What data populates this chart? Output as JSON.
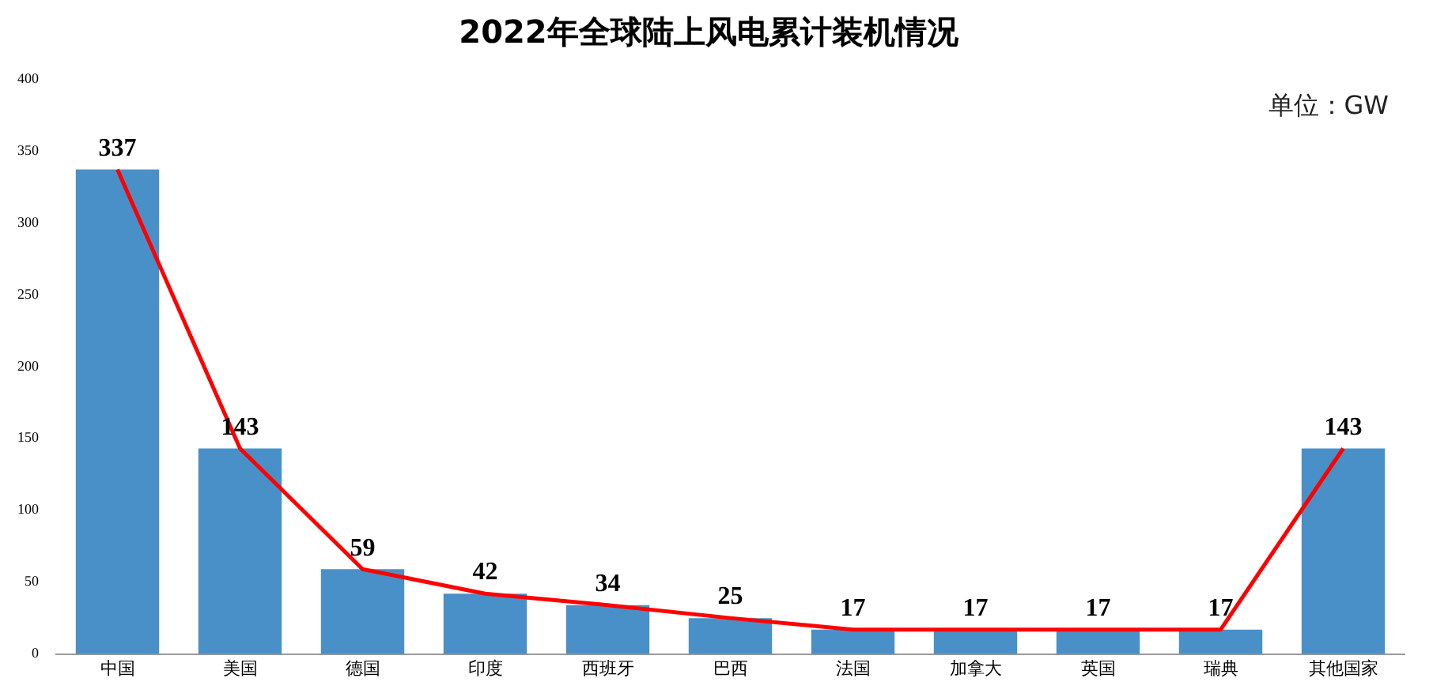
{
  "chart_data": {
    "type": "bar",
    "title": "2022年全球陆上风电累计装机情况",
    "annotations": [
      "单位：GW"
    ],
    "categories": [
      "中国",
      "美国",
      "德国",
      "印度",
      "西班牙",
      "巴西",
      "法国",
      "加拿大",
      "英国",
      "瑞典",
      "其他国家"
    ],
    "series": [
      {
        "color": "#4a90c8",
        "values": [
          337,
          143,
          59,
          42,
          34,
          25,
          17,
          17,
          17,
          17,
          143
        ],
        "value_labels": [
          "337",
          "143",
          "59",
          "42",
          "34",
          "25",
          "17",
          "17",
          "17",
          "17",
          "143"
        ]
      },
      {
        "type": "line",
        "color": "#ff0000",
        "values": [
          337,
          143,
          59,
          42,
          34,
          25,
          17,
          17,
          17,
          17,
          143
        ],
        "marker": "none"
      }
    ],
    "ylim": [
      0,
      400
    ],
    "yticks": [
      0,
      50,
      100,
      150,
      200,
      250,
      300,
      350,
      400
    ],
    "grid": false,
    "legend": false
  }
}
